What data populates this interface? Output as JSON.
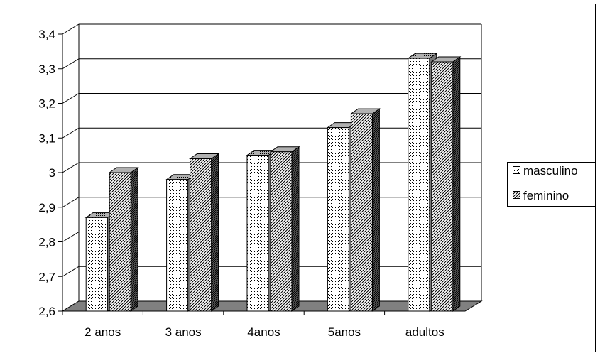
{
  "chart_data": {
    "type": "bar",
    "style": "3d-clustered-column",
    "categories": [
      "2 anos",
      "3 anos",
      "4anos",
      "5anos",
      "adultos"
    ],
    "series": [
      {
        "name": "masculino",
        "values": [
          2.87,
          2.98,
          3.05,
          3.13,
          3.33
        ],
        "pattern": "dots"
      },
      {
        "name": "feminino",
        "values": [
          3.0,
          3.04,
          3.06,
          3.17,
          3.32
        ],
        "pattern": "diagonal-hatch"
      }
    ],
    "title": "",
    "xlabel": "",
    "ylabel": "",
    "ylim": [
      2.6,
      3.4
    ],
    "yticks": [
      "2,6",
      "2,7",
      "2,8",
      "2,9",
      "3",
      "3,1",
      "3,2",
      "3,3",
      "3,4"
    ],
    "grid": true,
    "legend": "right",
    "colors": {
      "floor": "#808080",
      "gridline": "#000000",
      "bar_edge": "#000000",
      "bar_side": "#555555"
    }
  }
}
